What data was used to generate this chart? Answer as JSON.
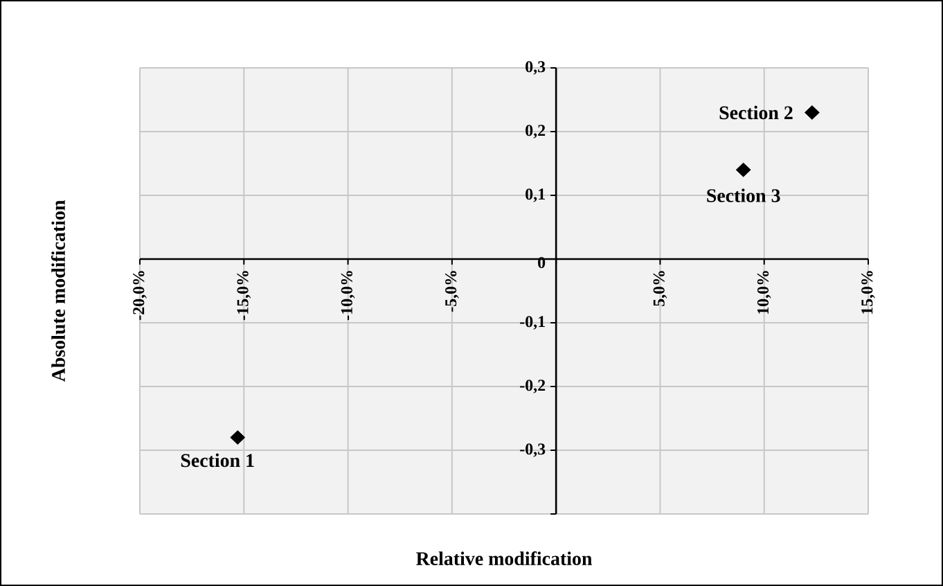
{
  "chart_data": {
    "type": "scatter",
    "xlabel": "Relative modification",
    "ylabel": "Absolute modification",
    "x": [
      -15.3,
      12.3,
      9.0
    ],
    "values": [
      -0.28,
      0.23,
      0.14
    ],
    "color": "#000000",
    "marker": "diamond",
    "grid": true,
    "xlim": [
      -20,
      15
    ],
    "ylim": [
      -0.4,
      0.3
    ],
    "xticks": [
      {
        "value": -20,
        "label": "-20,0%"
      },
      {
        "value": -15,
        "label": "-15,0%"
      },
      {
        "value": -10,
        "label": "-10,0%"
      },
      {
        "value": -5,
        "label": "-5,0%"
      },
      {
        "value": 0,
        "label": null
      },
      {
        "value": 5,
        "label": "5,0%"
      },
      {
        "value": 10,
        "label": "10,0%"
      },
      {
        "value": 15,
        "label": "15,0%"
      }
    ],
    "yticks": [
      {
        "value": -0.4,
        "label": null
      },
      {
        "value": -0.3,
        "label": "-0,3"
      },
      {
        "value": -0.2,
        "label": "-0,2"
      },
      {
        "value": -0.1,
        "label": "-0,1"
      },
      0,
      {
        "value": 0.1,
        "label": "0,1"
      },
      {
        "value": 0.2,
        "label": "0,2"
      },
      {
        "value": 0.3,
        "label": "0,3"
      }
    ],
    "annotations": [
      {
        "text": "Section  1",
        "x": -15.3,
        "y": -0.28
      },
      {
        "text": "Section  2",
        "x": 12.3,
        "y": 0.23
      },
      {
        "text": "Section  3",
        "x": 9.0,
        "y": 0.14
      }
    ]
  }
}
